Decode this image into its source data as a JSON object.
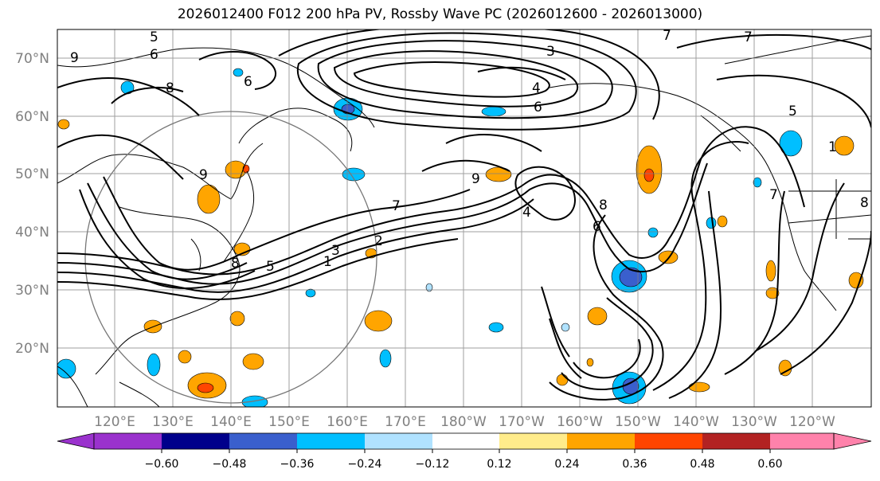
{
  "title": "2026012400 F012 200 hPa PV, Rossby Wave PC (2026012600 - 2026013000)",
  "lat_labels": [
    "70°N",
    "60°N",
    "50°N",
    "40°N",
    "30°N",
    "20°N"
  ],
  "lon_labels": [
    "120°E",
    "130°E",
    "140°E",
    "150°E",
    "160°E",
    "170°E",
    "180°W",
    "170°W",
    "160°W",
    "150°W",
    "140°W",
    "130°W",
    "120°W"
  ],
  "contour_labels": [
    "5",
    "6",
    "9",
    "6",
    "8",
    "3",
    "4",
    "6",
    "7",
    "7",
    "5",
    "9",
    "7",
    "4",
    "6",
    "8",
    "7",
    "3",
    "2",
    "1",
    "5",
    "8",
    "9",
    "8",
    "1"
  ],
  "colorbar": {
    "ticks": [
      "−0.60",
      "−0.48",
      "−0.36",
      "−0.24",
      "−0.12",
      "0.12",
      "0.24",
      "0.36",
      "0.48",
      "0.60"
    ],
    "colors": [
      "#9a32cd",
      "#00008b",
      "#3a5fcd",
      "#00bfff",
      "#b0e2ff",
      "#ffffff",
      "#ffec8b",
      "#ffa500",
      "#ff4500",
      "#b22222",
      "#ff82ab"
    ]
  },
  "colors": {
    "negative_strong": "#3a5fcd",
    "negative_mid": "#00bfff",
    "negative_weak": "#b0e2ff",
    "positive_weak": "#ffec8b",
    "positive_mid": "#ffa500",
    "positive_strong": "#ff4500"
  }
}
